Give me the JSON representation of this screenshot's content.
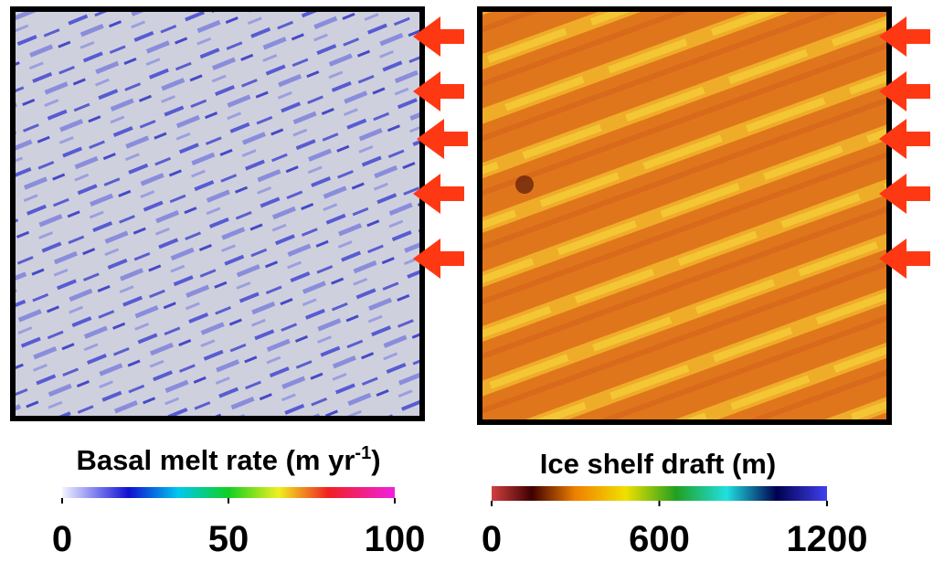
{
  "panels": [
    {
      "colorbar": {
        "label": "Basal melt rate (m yr",
        "label_superscript": "-1",
        "label_end": ")",
        "lim": [
          0,
          100
        ],
        "ticks": [
          0,
          50,
          100
        ]
      }
    },
    {
      "colorbar": {
        "label": "Ice shelf draft  (m)",
        "lim": [
          0,
          1200
        ],
        "ticks": [
          0,
          600,
          1200
        ]
      }
    }
  ]
}
